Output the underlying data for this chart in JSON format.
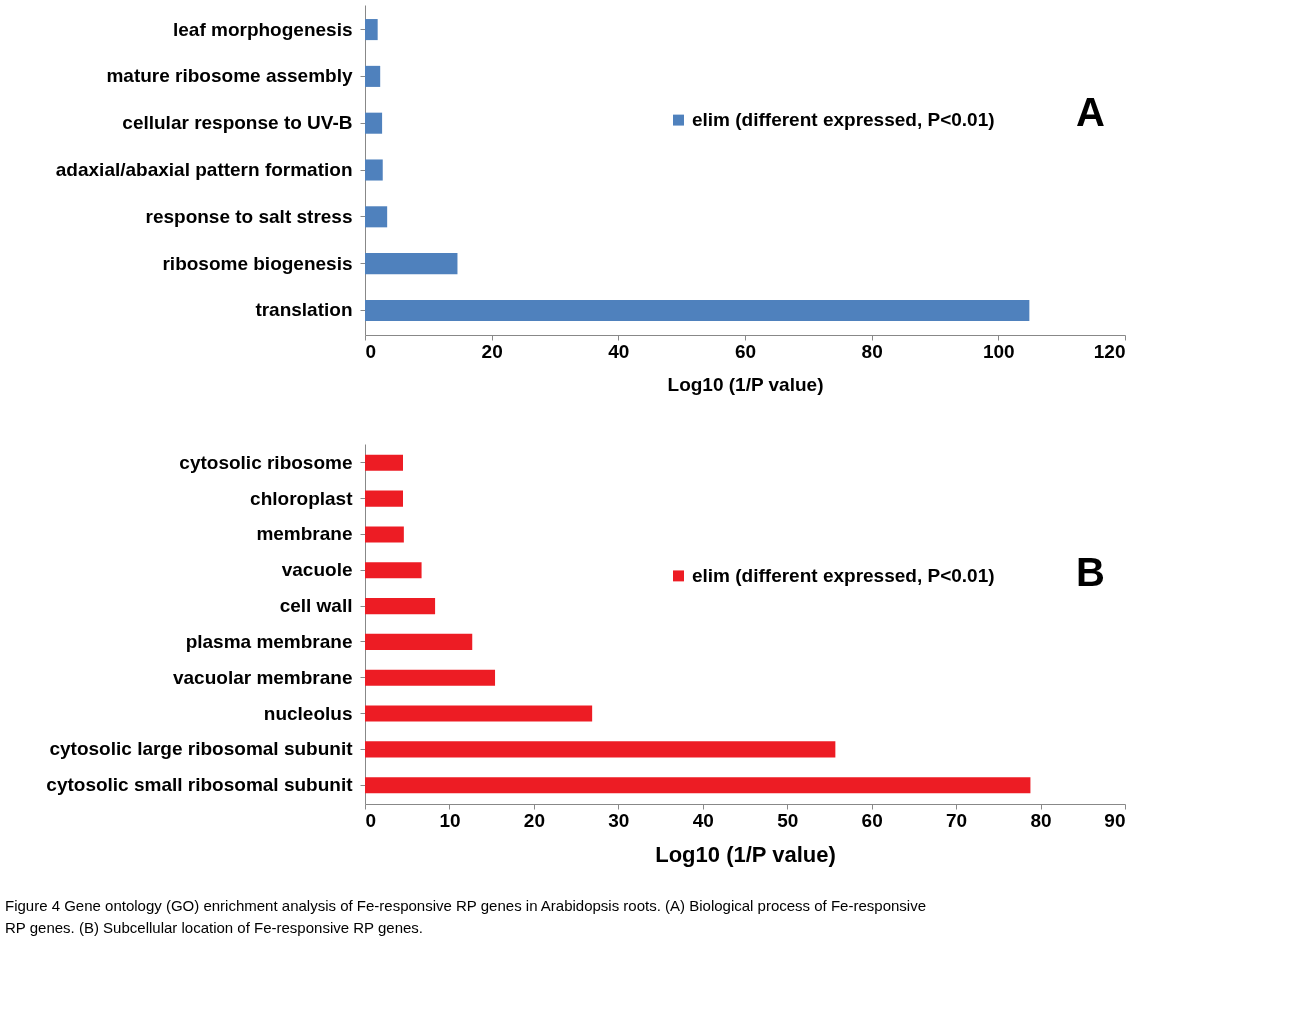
{
  "chart_data": [
    {
      "type": "bar",
      "orientation": "horizontal",
      "categories": [
        "leaf morphogenesis",
        "mature ribosome assembly",
        "cellular response to UV-B",
        "adaxial/abaxial pattern formation",
        "response to salt stress",
        "ribosome biogenesis",
        "translation"
      ],
      "series": [
        {
          "name": "elim (different expressed, P<0.01)",
          "color": "#4f81bd",
          "values": [
            2.0,
            2.4,
            2.7,
            2.8,
            3.5,
            14.6,
            104.9
          ]
        }
      ],
      "xlabel": "Log10 (1/P value)",
      "xlim": [
        0,
        120
      ],
      "xticks": [
        0,
        20,
        40,
        60,
        80,
        100,
        120
      ],
      "legend": "right",
      "grid": false,
      "annotations": [
        "A"
      ]
    },
    {
      "type": "bar",
      "orientation": "horizontal",
      "categories": [
        "cytosolic ribosome",
        "chloroplast",
        "membrane",
        "vacuole",
        "cell wall",
        "plasma membrane",
        "vacuolar membrane",
        "nucleolus",
        "cytosolic large ribosomal subunit",
        "cytosolic small ribosomal subunit"
      ],
      "series": [
        {
          "name": "elim (different expressed, P<0.01)",
          "color": "#ed1c24",
          "values": [
            4.5,
            4.5,
            4.6,
            6.7,
            8.3,
            12.7,
            15.4,
            26.9,
            55.7,
            78.8
          ]
        }
      ],
      "xlabel": "Log10 (1/P value)",
      "xlim": [
        0,
        90
      ],
      "xticks": [
        0,
        10,
        20,
        30,
        40,
        50,
        60,
        70,
        80,
        90
      ],
      "legend": "right",
      "grid": false,
      "annotations": [
        "B",
        "Figure 4 Gene ontology (GO) enrichment analysis of Fe-responsive RP genes in Arabidopsis roots. (A) Biological process of Fe-responsive RP genes. (B) Subcellular location of Fe-responsive RP genes."
      ]
    }
  ]
}
